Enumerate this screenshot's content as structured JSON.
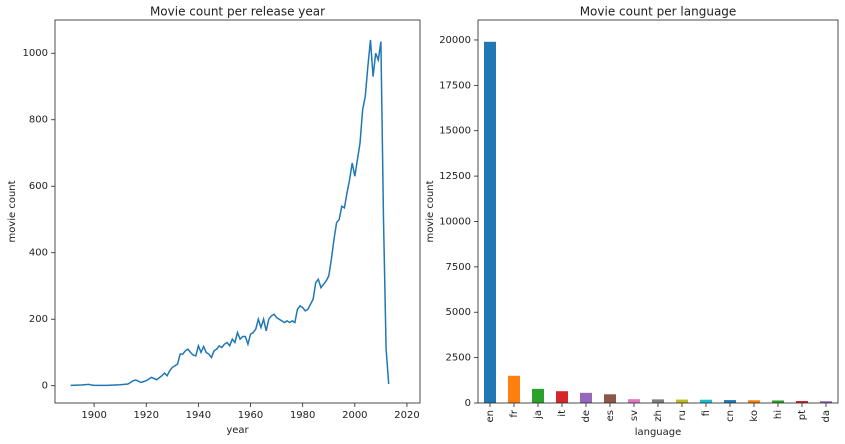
{
  "chart_data": [
    {
      "type": "line",
      "title": "Movie count per release year",
      "xlabel": "year",
      "ylabel": "movie count",
      "color": "#1f77b4",
      "x": [
        1891,
        1895,
        1898,
        1899,
        1900,
        1905,
        1910,
        1913,
        1915,
        1916,
        1918,
        1920,
        1922,
        1924,
        1926,
        1927,
        1928,
        1929,
        1930,
        1932,
        1933,
        1934,
        1935,
        1936,
        1937,
        1938,
        1939,
        1940,
        1941,
        1942,
        1943,
        1944,
        1945,
        1946,
        1947,
        1948,
        1949,
        1950,
        1951,
        1952,
        1953,
        1954,
        1955,
        1956,
        1957,
        1958,
        1959,
        1960,
        1961,
        1962,
        1963,
        1964,
        1965,
        1966,
        1967,
        1968,
        1969,
        1970,
        1971,
        1972,
        1973,
        1974,
        1975,
        1976,
        1977,
        1978,
        1979,
        1980,
        1981,
        1982,
        1983,
        1984,
        1985,
        1986,
        1987,
        1988,
        1989,
        1990,
        1991,
        1992,
        1993,
        1994,
        1995,
        1996,
        1997,
        1998,
        1999,
        2000,
        2001,
        2002,
        2003,
        2004,
        2005,
        2006,
        2007,
        2008,
        2009,
        2010,
        2011,
        2012,
        2013
      ],
      "values": [
        1,
        2,
        4,
        2,
        1,
        1,
        3,
        5,
        15,
        17,
        10,
        15,
        25,
        18,
        30,
        38,
        30,
        45,
        55,
        65,
        95,
        95,
        105,
        110,
        100,
        92,
        90,
        120,
        100,
        118,
        100,
        95,
        85,
        105,
        110,
        120,
        115,
        125,
        130,
        120,
        140,
        130,
        160,
        140,
        148,
        148,
        125,
        155,
        160,
        170,
        200,
        175,
        200,
        165,
        200,
        210,
        215,
        205,
        200,
        195,
        190,
        195,
        190,
        195,
        190,
        230,
        240,
        235,
        225,
        230,
        245,
        260,
        310,
        320,
        295,
        305,
        315,
        330,
        380,
        440,
        490,
        500,
        540,
        535,
        580,
        620,
        670,
        630,
        680,
        730,
        830,
        870,
        960,
        1040,
        930,
        1000,
        980,
        1035,
        500,
        110,
        5
      ],
      "xlim": [
        1885,
        2025
      ],
      "ylim": [
        -52,
        1100
      ],
      "xticks": [
        1900,
        1920,
        1940,
        1960,
        1980,
        2000,
        2020
      ],
      "yticks": [
        0,
        200,
        400,
        600,
        800,
        1000
      ]
    },
    {
      "type": "bar",
      "title": "Movie count per language",
      "xlabel": "language",
      "ylabel": "movie count",
      "categories": [
        "en",
        "fr",
        "ja",
        "it",
        "de",
        "es",
        "sv",
        "zh",
        "ru",
        "fi",
        "cn",
        "ko",
        "hi",
        "pt",
        "da"
      ],
      "values": [
        19900,
        1500,
        780,
        650,
        560,
        480,
        210,
        200,
        190,
        180,
        160,
        150,
        140,
        110,
        100
      ],
      "colors": [
        "#1f77b4",
        "#ff7f0e",
        "#2ca02c",
        "#d62728",
        "#9467bd",
        "#8c564b",
        "#e377c2",
        "#7f7f7f",
        "#bcbd22",
        "#17becf",
        "#1f77b4",
        "#ff7f0e",
        "#2ca02c",
        "#d62728",
        "#9467bd"
      ],
      "ylim": [
        0,
        21100
      ],
      "yticks": [
        0,
        2500,
        5000,
        7500,
        10000,
        12500,
        15000,
        17500,
        20000
      ]
    }
  ]
}
